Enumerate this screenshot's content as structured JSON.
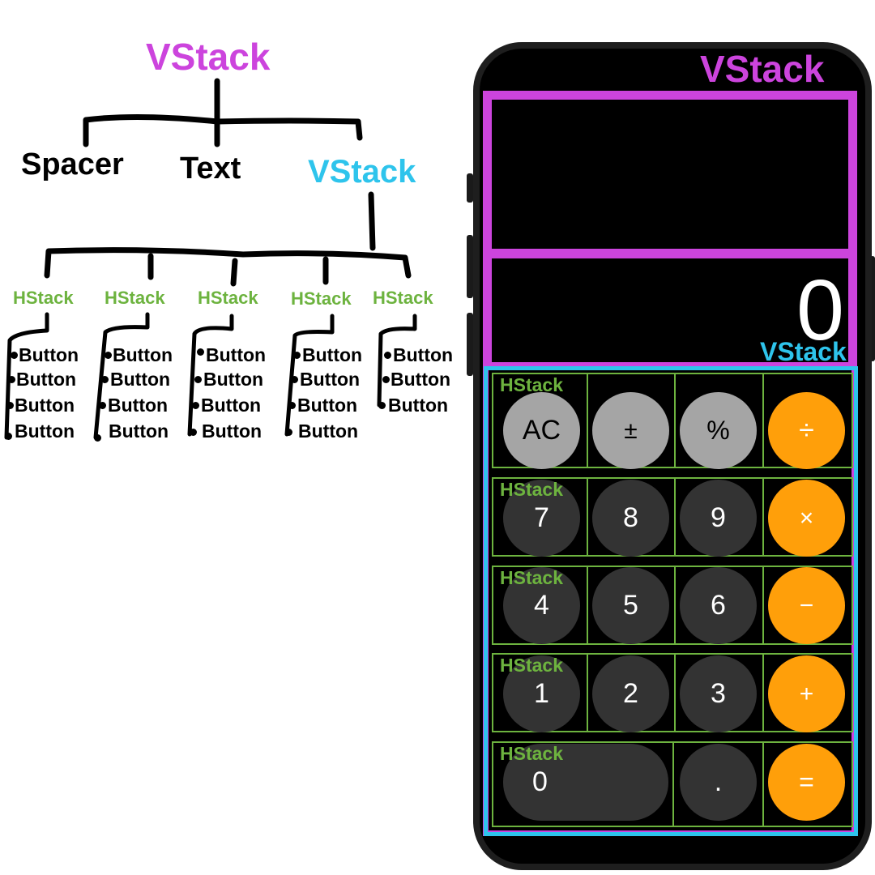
{
  "tree": {
    "root": "VStack",
    "children": [
      "Spacer",
      "Text",
      "VStack"
    ],
    "hstacks": [
      {
        "label": "HStack",
        "buttons": [
          "Button",
          "Button",
          "Button",
          "Button"
        ]
      },
      {
        "label": "HStack",
        "buttons": [
          "Button",
          "Button",
          "Button",
          "Button"
        ]
      },
      {
        "label": "HStack",
        "buttons": [
          "Button",
          "Button",
          "Button",
          "Button"
        ]
      },
      {
        "label": "HStack",
        "buttons": [
          "Button",
          "Button",
          "Button",
          "Button"
        ]
      },
      {
        "label": "HStack",
        "buttons": [
          "Button",
          "Button",
          "Button"
        ]
      }
    ]
  },
  "phone": {
    "outer_label": "VStack",
    "inner_label": "VStack",
    "row_label": "HStack",
    "display": "0",
    "rows": [
      {
        "label": "HStack",
        "keys": [
          "AC",
          "±",
          "%",
          "÷"
        ]
      },
      {
        "label": "HStack",
        "keys": [
          "7",
          "8",
          "9",
          "×"
        ]
      },
      {
        "label": "HStack",
        "keys": [
          "4",
          "5",
          "6",
          "−"
        ]
      },
      {
        "label": "HStack",
        "keys": [
          "1",
          "2",
          "3",
          "+"
        ]
      },
      {
        "label": "HStack",
        "keys": [
          "0",
          ".",
          "="
        ]
      }
    ]
  },
  "colors": {
    "magenta": "#cc44dd",
    "cyan": "#2ec4ec",
    "green": "#6db33f",
    "orange": "#ff9f0a",
    "light_gray": "#a5a5a5",
    "dark_gray": "#333333"
  }
}
